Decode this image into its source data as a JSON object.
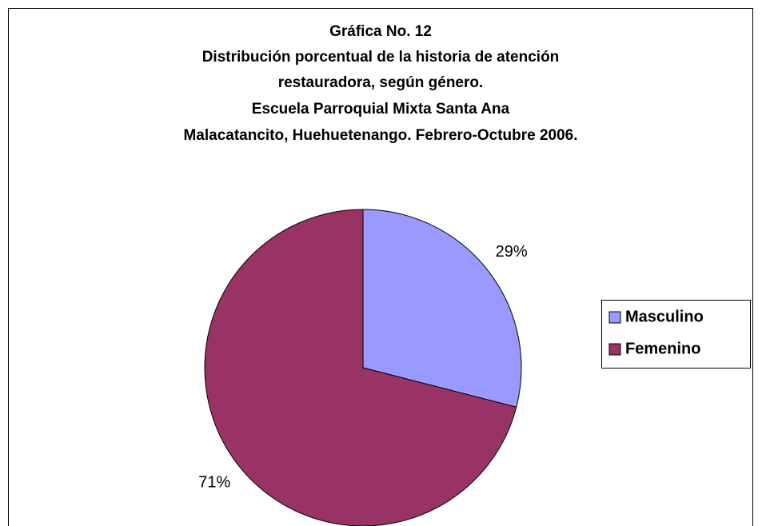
{
  "chart_data": {
    "type": "pie",
    "title": [
      "Gráfica No. 12",
      "Distribución porcentual de la historia de atención",
      "restauradora, según género.",
      "Escuela Parroquial Mixta Santa Ana",
      "Malacatancito, Huehuetenango.  Febrero-Octubre 2006."
    ],
    "categories": [
      "Masculino",
      "Femenino"
    ],
    "values": [
      29,
      71
    ],
    "value_labels": [
      "29%",
      "71%"
    ],
    "colors": [
      "#9999ff",
      "#993366"
    ],
    "legend": "right"
  }
}
